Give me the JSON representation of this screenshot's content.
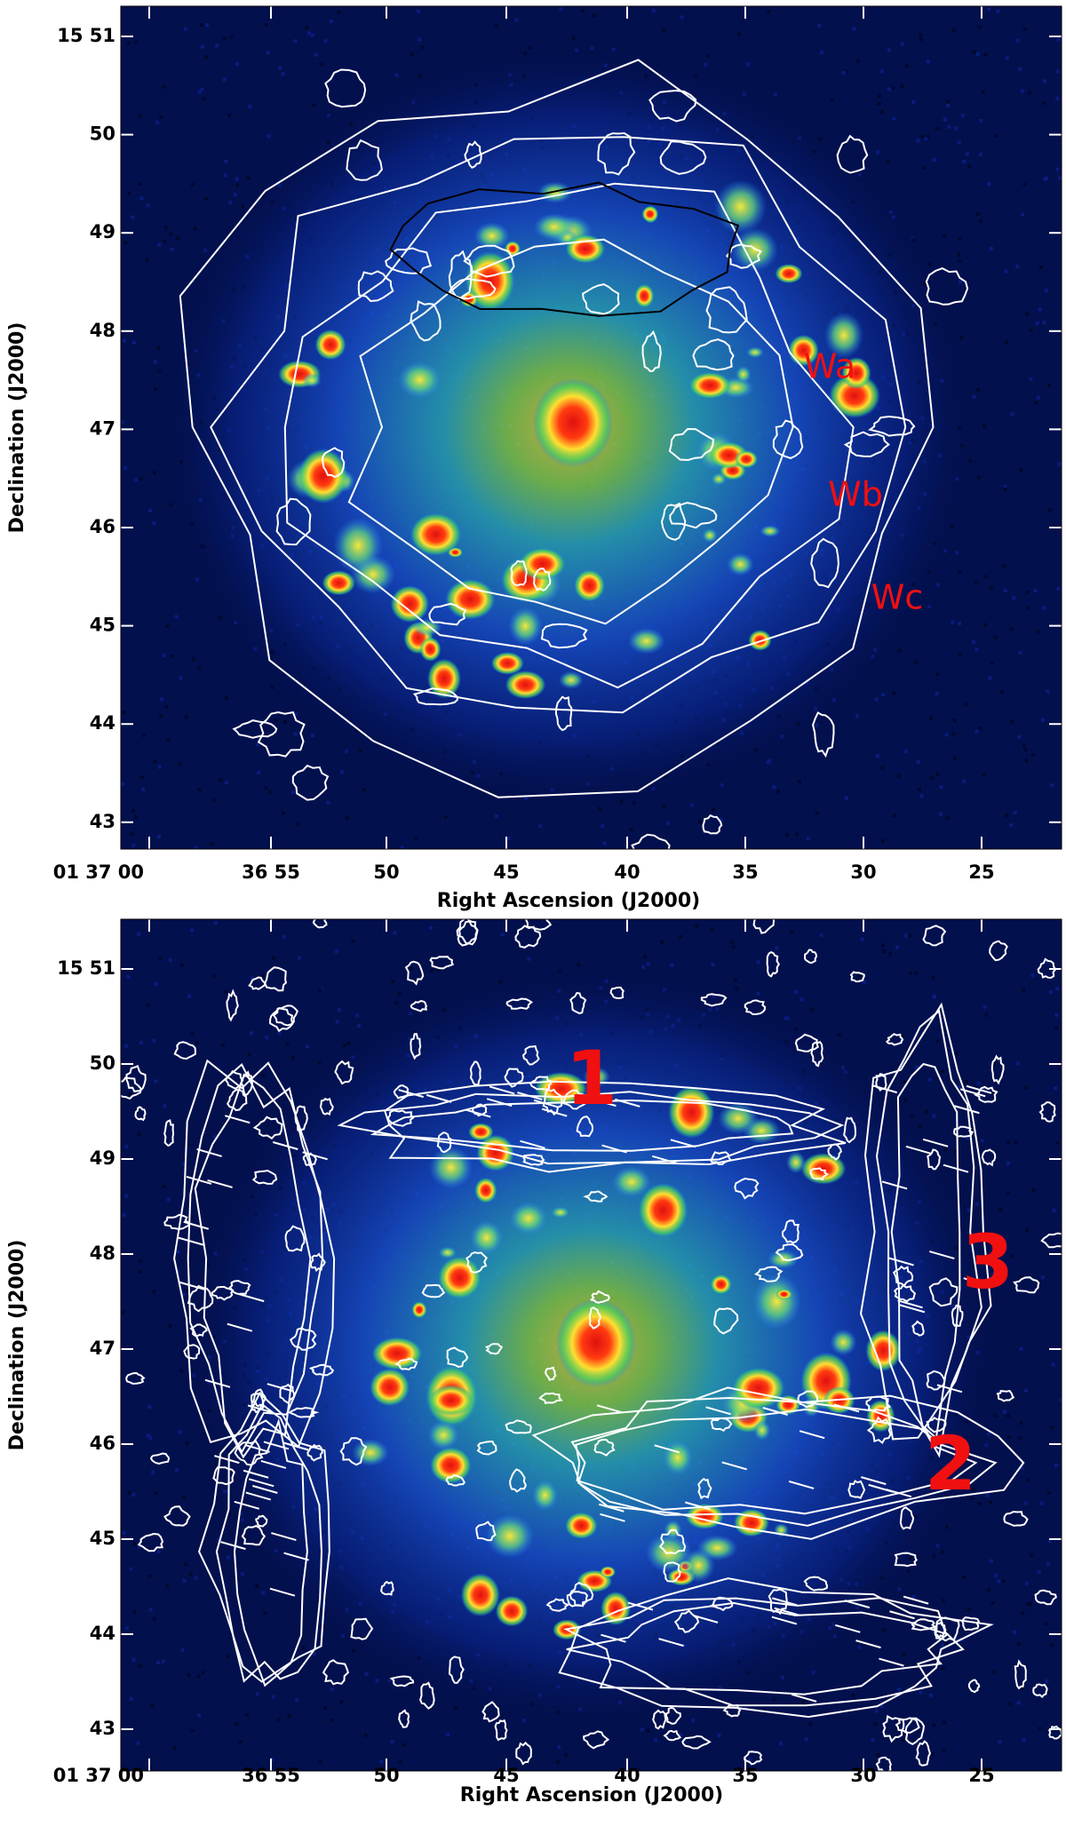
{
  "panels": [
    {
      "y_tick_labels": [
        "15 51",
        "50",
        "49",
        "48",
        "47",
        "46",
        "45",
        "44",
        "43"
      ],
      "x_tick_labels": [
        "01 37 00",
        "36 55",
        "50",
        "45",
        "40",
        "35",
        "30",
        "25"
      ],
      "x_axis_title": "Right Ascension (J2000)",
      "y_axis_title": "Declination (J2000)",
      "annotations": [
        "Wa",
        "Wb",
        "Wc"
      ]
    },
    {
      "y_tick_labels": [
        "15 51",
        "50",
        "49",
        "48",
        "47",
        "46",
        "45",
        "44",
        "43"
      ],
      "x_tick_labels": [
        "01 37 00",
        "36 55",
        "50",
        "45",
        "40",
        "35",
        "30",
        "25"
      ],
      "x_axis_title": "Right Ascension (J2000)",
      "y_axis_title": "Declination (J2000)",
      "annotations": [
        "1",
        "3",
        "2"
      ]
    }
  ]
}
